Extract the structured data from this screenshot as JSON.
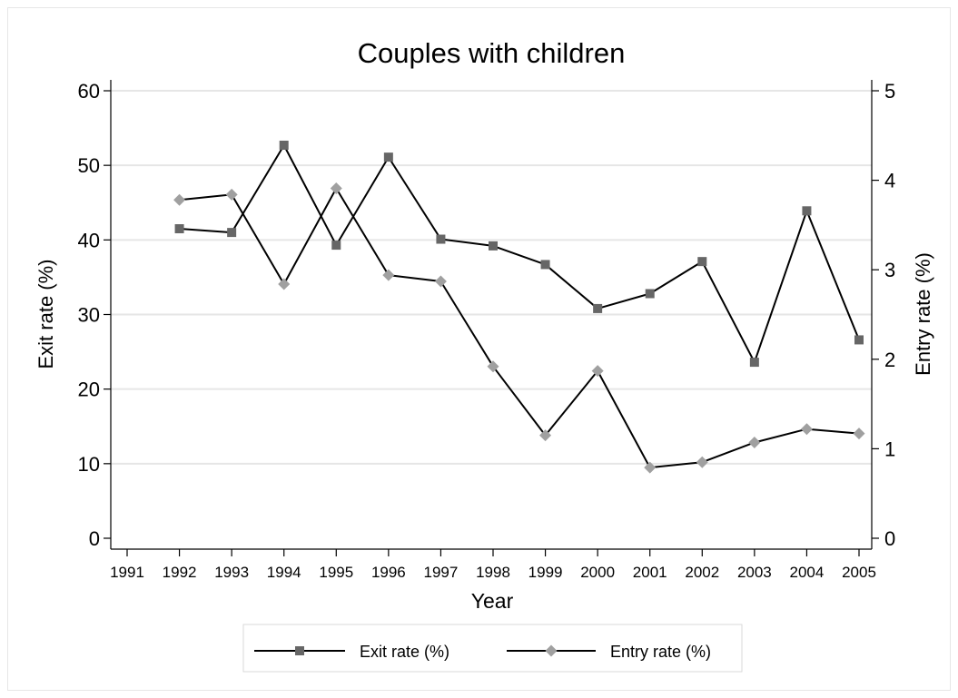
{
  "chart_data": {
    "type": "line",
    "title": "Couples with children",
    "xlabel": "Year",
    "ylabel_left": "Exit rate (%)",
    "ylabel_right": "Entry rate (%)",
    "x": [
      1991,
      1992,
      1993,
      1994,
      1995,
      1996,
      1997,
      1998,
      1999,
      2000,
      2001,
      2002,
      2003,
      2004,
      2005
    ],
    "xlim": [
      1991,
      2005
    ],
    "ylim_left": [
      0,
      60
    ],
    "ylim_right": [
      0,
      5
    ],
    "yticks_left": [
      0,
      10,
      20,
      30,
      40,
      50,
      60
    ],
    "yticks_right": [
      0,
      1,
      2,
      3,
      4,
      5
    ],
    "grid": true,
    "legend_position": "bottom",
    "series": [
      {
        "name": "Exit rate (%)",
        "axis": "left",
        "marker": "square",
        "marker_color": "#666666",
        "line_color": "#000000",
        "x": [
          1992,
          1993,
          1994,
          1995,
          1996,
          1997,
          1998,
          1999,
          2000,
          2001,
          2002,
          2003,
          2004,
          2005
        ],
        "values": [
          41.5,
          41.0,
          52.7,
          39.3,
          51.1,
          40.1,
          39.2,
          36.7,
          30.8,
          32.8,
          37.1,
          23.6,
          43.9,
          26.6
        ]
      },
      {
        "name": "Entry rate (%)",
        "axis": "right",
        "marker": "diamond",
        "marker_color": "#a0a0a0",
        "line_color": "#000000",
        "x": [
          1992,
          1993,
          1994,
          1995,
          1996,
          1997,
          1998,
          1999,
          2000,
          2001,
          2002,
          2003,
          2004,
          2005
        ],
        "values": [
          3.78,
          3.84,
          2.84,
          3.91,
          2.94,
          2.87,
          1.92,
          1.15,
          1.87,
          0.79,
          0.85,
          1.07,
          1.22,
          1.17
        ]
      }
    ]
  }
}
